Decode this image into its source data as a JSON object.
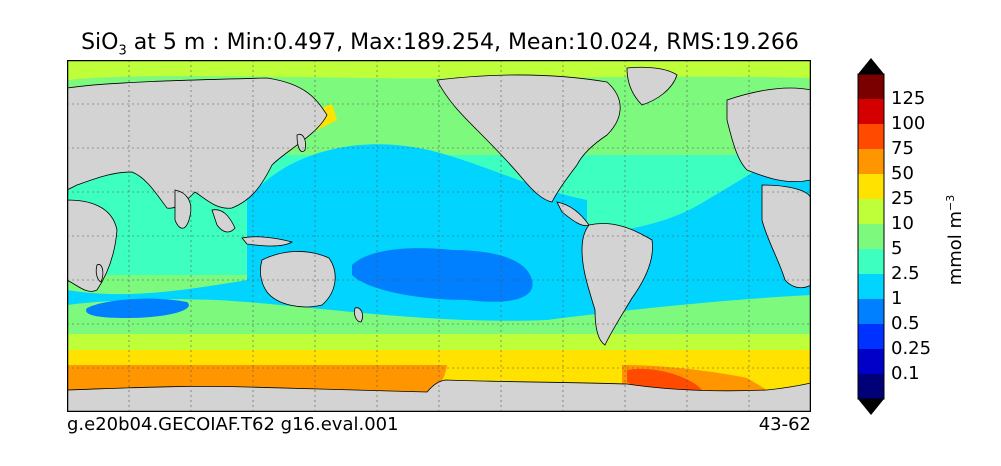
{
  "title": {
    "variable": "SiO",
    "subscript": "3",
    "text": " at 5 m : Min:0.497, Max:189.254, Mean:10.024, RMS:19.266"
  },
  "footer": {
    "left": "g.e20b04.GECOIAF.T62 g16.eval.001",
    "right": "43-62"
  },
  "colorbar": {
    "units_main": "mmol m",
    "units_exp": "−3",
    "labels": [
      "125",
      "100",
      "75",
      "50",
      "25",
      "10",
      "5",
      "2.5",
      "1",
      "0.5",
      "0.25",
      "0.1"
    ],
    "colors": [
      "#7a0000",
      "#d40000",
      "#ff4a00",
      "#ff9600",
      "#ffe200",
      "#bfff3a",
      "#7dfa7d",
      "#3dffc0",
      "#00d4ff",
      "#0080ff",
      "#0032ff",
      "#0000c8",
      "#000078"
    ],
    "over_color": "#000000",
    "under_color": "#000000"
  },
  "map_colors": {
    "land": "#d3d3d3",
    "coastline": "#000000",
    "grid": "#555555"
  }
}
